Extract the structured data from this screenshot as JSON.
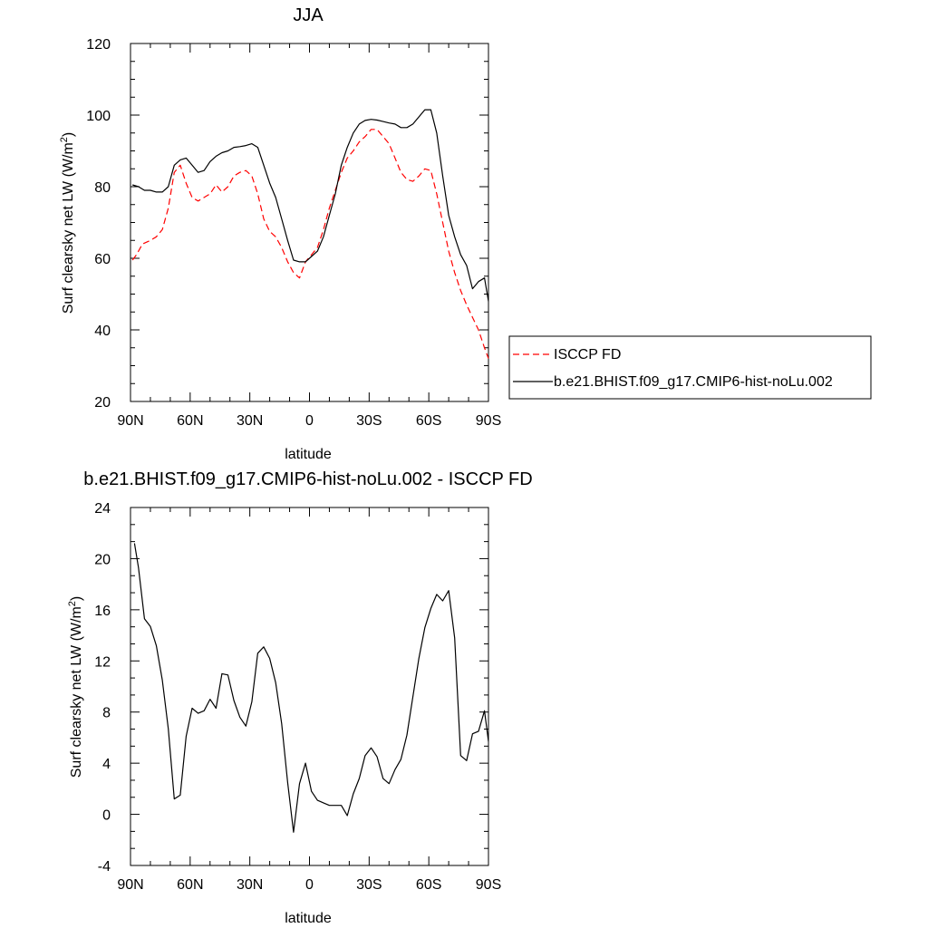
{
  "chart_data": [
    {
      "type": "line",
      "title": "JJA",
      "xlabel": "latitude",
      "ylabel": "Surf clearsky net LW (W/m",
      "ylabel_superscript": "2",
      "ylabel_suffix": ")",
      "xlim": [
        -90,
        90
      ],
      "ylim": [
        20,
        120
      ],
      "x_ticks": [
        -90,
        -60,
        -30,
        0,
        30,
        60,
        90
      ],
      "x_tick_labels": [
        "90N",
        "60N",
        "30N",
        "0",
        "30S",
        "60S",
        "90S"
      ],
      "y_ticks": [
        20,
        40,
        60,
        80,
        100,
        120
      ],
      "y_tick_labels": [
        "20",
        "40",
        "60",
        "80",
        "100",
        "120"
      ],
      "grid": false,
      "legend_placement": "right",
      "series": [
        {
          "name": "ISCCP FD",
          "color": "#ff0000",
          "dash": "dashed",
          "x": [
            -89,
            -87,
            -84,
            -80,
            -77,
            -74,
            -71,
            -68,
            -65,
            -62,
            -59,
            -56,
            -53,
            -50,
            -47,
            -44,
            -41,
            -38,
            -35,
            -32,
            -29,
            -26,
            -23,
            -20,
            -17,
            -14,
            -11,
            -8,
            -5,
            -2,
            1,
            4,
            7,
            10,
            13,
            16,
            19,
            22,
            25,
            28,
            31,
            34,
            37,
            40,
            43,
            46,
            49,
            52,
            55,
            58,
            61,
            64,
            67,
            70,
            73,
            76,
            79,
            82,
            85,
            88,
            90
          ],
          "y": [
            59.5,
            61,
            64,
            65,
            66,
            68,
            74,
            84,
            86,
            81,
            77,
            76,
            77,
            78,
            80.5,
            78.5,
            80,
            83,
            84,
            84.5,
            83,
            78,
            71,
            67.5,
            66,
            63,
            59,
            56,
            54.5,
            59,
            61,
            63,
            68,
            74,
            79,
            84,
            88,
            90,
            92.5,
            94,
            96,
            96,
            94,
            92,
            88,
            84,
            82,
            81.5,
            83,
            85,
            84.5,
            78,
            70,
            62,
            56,
            51,
            47,
            43.5,
            40,
            35,
            32
          ]
        },
        {
          "name": "b.e21.BHIST.f09_g17.CMIP6-hist-noLu.002",
          "color": "#000000",
          "dash": "solid",
          "x": [
            -89,
            -86,
            -83,
            -80,
            -77,
            -74,
            -71,
            -68,
            -65,
            -62,
            -59,
            -56,
            -53,
            -50,
            -47,
            -44,
            -41,
            -38,
            -35,
            -32,
            -29,
            -26,
            -23,
            -20,
            -17,
            -14,
            -11,
            -8,
            -5,
            -2,
            1,
            4,
            7,
            10,
            13,
            16,
            19,
            22,
            25,
            28,
            31,
            34,
            37,
            40,
            43,
            46,
            49,
            52,
            55,
            58,
            61,
            64,
            67,
            70,
            73,
            76,
            79,
            82,
            85,
            88,
            90
          ],
          "y": [
            80.5,
            80,
            79,
            79,
            78.5,
            78.5,
            80,
            86,
            87.5,
            88,
            86,
            84,
            84.5,
            87,
            88.5,
            89.5,
            90,
            91,
            91.2,
            91.5,
            92,
            91,
            86,
            81,
            77,
            71,
            65,
            59.5,
            59,
            59,
            60.5,
            62,
            66,
            72,
            78,
            86,
            91,
            95,
            97.5,
            98.5,
            98.8,
            98.6,
            98.2,
            97.8,
            97.5,
            96.5,
            96.5,
            97.5,
            99.5,
            101.5,
            101.5,
            95,
            83,
            72,
            66,
            61,
            58,
            51.5,
            53.5,
            54.5,
            48
          ]
        }
      ]
    },
    {
      "type": "line",
      "title": "b.e21.BHIST.f09_g17.CMIP6-hist-noLu.002 - ISCCP FD",
      "xlabel": "latitude",
      "ylabel": "Surf clearsky net LW (W/m",
      "ylabel_superscript": "2",
      "ylabel_suffix": ")",
      "xlim": [
        -90,
        90
      ],
      "ylim": [
        -4,
        24
      ],
      "x_ticks": [
        -90,
        -60,
        -30,
        0,
        30,
        60,
        90
      ],
      "x_tick_labels": [
        "90N",
        "60N",
        "30N",
        "0",
        "30S",
        "60S",
        "90S"
      ],
      "y_ticks": [
        -4,
        0,
        4,
        8,
        12,
        16,
        20,
        24
      ],
      "y_tick_labels": [
        "-4",
        "0",
        "4",
        "8",
        "12",
        "16",
        "20",
        "24"
      ],
      "grid": false,
      "series": [
        {
          "color": "#000000",
          "dash": "solid",
          "x": [
            -88,
            -86,
            -83,
            -80,
            -77,
            -74,
            -71,
            -68,
            -65,
            -62,
            -59,
            -56,
            -53,
            -50,
            -47,
            -44,
            -41,
            -38,
            -35,
            -32,
            -29,
            -26,
            -23,
            -20,
            -17,
            -14,
            -11,
            -8,
            -5,
            -2,
            1,
            4,
            7,
            10,
            13,
            16,
            19,
            22,
            25,
            28,
            31,
            34,
            37,
            40,
            43,
            46,
            49,
            52,
            55,
            58,
            61,
            64,
            67,
            70,
            73,
            76,
            79,
            82,
            85,
            88,
            90
          ],
          "y": [
            21.2,
            19.3,
            15.3,
            14.7,
            13.2,
            10.5,
            6.7,
            1.2,
            1.5,
            6.1,
            8.3,
            7.9,
            8.1,
            9,
            8.3,
            11,
            10.9,
            8.9,
            7.6,
            6.9,
            8.8,
            12.6,
            13.1,
            12.2,
            10.3,
            7.1,
            2.5,
            -1.4,
            2.4,
            4,
            1.8,
            1.1,
            0.9,
            0.7,
            0.7,
            0.7,
            -0.1,
            1.6,
            2.8,
            4.6,
            5.2,
            4.5,
            2.8,
            2.4,
            3.5,
            4.3,
            6.2,
            9.2,
            12.2,
            14.6,
            16.1,
            17.2,
            16.7,
            17.5,
            13.8,
            4.6,
            4.2,
            6.3,
            6.5,
            8.1,
            5.7
          ]
        }
      ]
    }
  ]
}
